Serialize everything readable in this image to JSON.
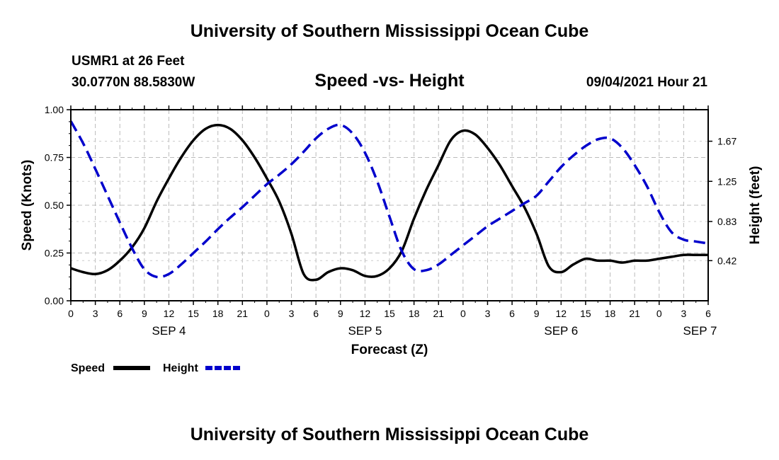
{
  "header": {
    "title": "University of Southern Mississippi Ocean Cube",
    "station": "USMR1 at 26 Feet",
    "coords": "30.0770N  88.5830W",
    "issued": "09/04/2021 Hour 21"
  },
  "footer": {
    "title": "University of Southern Mississippi Ocean Cube"
  },
  "chart_data": {
    "type": "line",
    "title": "Speed -vs- Height",
    "xlabel": "Forecast (Z)",
    "ylabel_left": "Speed (Knots)",
    "ylabel_right": "Height (feet)",
    "x_hours_range": [
      0,
      78
    ],
    "x_ticks": [
      0,
      3,
      6,
      9,
      12,
      15,
      18,
      21,
      24,
      27,
      30,
      33,
      36,
      39,
      42,
      45,
      48,
      51,
      54,
      57,
      60,
      63,
      66,
      69,
      72,
      75,
      78
    ],
    "x_tick_labels": [
      "0",
      "3",
      "6",
      "9",
      "12",
      "15",
      "18",
      "21",
      "0",
      "3",
      "6",
      "9",
      "12",
      "15",
      "18",
      "21",
      "0",
      "3",
      "6",
      "9",
      "12",
      "15",
      "18",
      "21",
      "0",
      "3",
      "6"
    ],
    "x_date_labels": [
      {
        "label": "SEP 4",
        "hour": 12
      },
      {
        "label": "SEP 5",
        "hour": 36
      },
      {
        "label": "SEP 6",
        "hour": 60
      },
      {
        "label": "SEP 7",
        "hour": 77
      }
    ],
    "y_left": {
      "range": [
        0,
        1
      ],
      "ticks": [
        0,
        0.25,
        0.5,
        0.75,
        1.0
      ],
      "tick_labels": [
        "0.00",
        "0.25",
        "0.50",
        "0.75",
        "1.00"
      ]
    },
    "y_right": {
      "range": [
        0,
        2.0
      ],
      "ticks": [
        0.42,
        0.83,
        1.25,
        1.67
      ],
      "tick_labels": [
        "0.42",
        "0.83",
        "1.25",
        "1.67"
      ]
    },
    "grid": true,
    "legend": [
      {
        "name": "Speed",
        "color": "#000000",
        "style": "solid"
      },
      {
        "name": "Height",
        "color": "#0000cc",
        "style": "dashed"
      }
    ],
    "series": [
      {
        "name": "Speed",
        "axis": "left",
        "color": "#000000",
        "dash": false,
        "x": [
          0,
          1.5,
          3,
          4.5,
          6,
          7.5,
          9,
          10.5,
          12,
          13.5,
          15,
          16.5,
          18,
          19.5,
          21,
          22.5,
          24,
          25.5,
          27,
          28.5,
          30,
          31.5,
          33,
          34.5,
          36,
          37.5,
          39,
          40.5,
          42,
          43.5,
          45,
          46.5,
          48,
          49.5,
          51,
          52.5,
          54,
          55.5,
          57,
          58.5,
          60,
          61.5,
          63,
          64.5,
          66,
          67.5,
          69,
          70.5,
          72,
          73.5,
          75,
          76.5,
          78
        ],
        "y": [
          0.17,
          0.15,
          0.14,
          0.16,
          0.21,
          0.28,
          0.38,
          0.52,
          0.64,
          0.75,
          0.84,
          0.9,
          0.92,
          0.9,
          0.84,
          0.75,
          0.64,
          0.52,
          0.35,
          0.14,
          0.11,
          0.15,
          0.17,
          0.16,
          0.13,
          0.13,
          0.17,
          0.26,
          0.43,
          0.58,
          0.71,
          0.84,
          0.89,
          0.87,
          0.8,
          0.71,
          0.6,
          0.49,
          0.35,
          0.18,
          0.15,
          0.19,
          0.22,
          0.21,
          0.21,
          0.2,
          0.21,
          0.21,
          0.22,
          0.23,
          0.24,
          0.24,
          0.24
        ]
      },
      {
        "name": "Height",
        "axis": "right",
        "color": "#0000cc",
        "dash": true,
        "x": [
          0,
          1.5,
          3,
          4.5,
          6,
          7.5,
          9,
          10.5,
          12,
          13.5,
          15,
          16.5,
          18,
          19.5,
          21,
          22.5,
          24,
          25.5,
          27,
          28.5,
          30,
          31.5,
          33,
          34.5,
          36,
          37.5,
          39,
          40.5,
          42,
          43.5,
          45,
          46.5,
          48,
          49.5,
          51,
          52.5,
          54,
          55.5,
          57,
          58.5,
          60,
          61.5,
          63,
          64.5,
          66,
          67.5,
          69,
          70.5,
          72,
          73.5,
          75,
          76.5,
          78
        ],
        "y": [
          1.88,
          1.65,
          1.38,
          1.1,
          0.82,
          0.55,
          0.33,
          0.25,
          0.28,
          0.38,
          0.5,
          0.62,
          0.75,
          0.87,
          0.98,
          1.1,
          1.22,
          1.32,
          1.43,
          1.56,
          1.7,
          1.8,
          1.84,
          1.75,
          1.55,
          1.25,
          0.88,
          0.52,
          0.33,
          0.32,
          0.38,
          0.48,
          0.58,
          0.68,
          0.78,
          0.86,
          0.94,
          1.02,
          1.1,
          1.25,
          1.4,
          1.52,
          1.62,
          1.69,
          1.7,
          1.6,
          1.42,
          1.2,
          0.93,
          0.72,
          0.64,
          0.62,
          0.6
        ]
      }
    ]
  }
}
